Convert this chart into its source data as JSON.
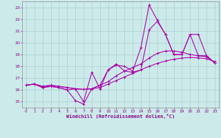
{
  "xlabel": "Windchill (Refroidissement éolien,°C)",
  "x_ticks": [
    0,
    1,
    2,
    3,
    4,
    5,
    6,
    7,
    8,
    9,
    10,
    11,
    12,
    13,
    14,
    15,
    16,
    17,
    18,
    19,
    20,
    21,
    22,
    23
  ],
  "ylim": [
    14.5,
    23.5
  ],
  "xlim": [
    -0.5,
    23.5
  ],
  "yticks": [
    15,
    16,
    17,
    18,
    19,
    20,
    21,
    22,
    23
  ],
  "background_color": "#cdeaea",
  "grid_color": "#aacfcf",
  "line_color": "#aa00aa",
  "smooth_line_x": [
    0,
    1,
    2,
    3,
    4,
    5,
    6,
    7,
    8,
    9,
    10,
    11,
    12,
    13,
    14,
    15,
    16,
    17,
    18,
    19,
    20,
    21,
    22,
    23
  ],
  "smooth_line_y": [
    16.4,
    16.5,
    16.3,
    16.4,
    16.3,
    16.2,
    16.1,
    16.05,
    16.1,
    16.2,
    16.5,
    16.8,
    17.1,
    17.4,
    17.7,
    18.0,
    18.25,
    18.45,
    18.6,
    18.7,
    18.75,
    18.72,
    18.65,
    18.4
  ],
  "smooth_line2_x": [
    0,
    1,
    2,
    3,
    4,
    5,
    6,
    7,
    8,
    9,
    10,
    11,
    12,
    13,
    14,
    15,
    16,
    17,
    18,
    19,
    20,
    21,
    22,
    23
  ],
  "smooth_line2_y": [
    16.4,
    16.5,
    16.3,
    16.4,
    16.3,
    16.2,
    16.1,
    16.05,
    16.1,
    16.4,
    16.7,
    17.2,
    17.6,
    17.9,
    18.2,
    18.7,
    19.1,
    19.3,
    19.3,
    19.2,
    19.0,
    18.9,
    18.8,
    18.3
  ],
  "jagged_line1_x": [
    0,
    1,
    2,
    3,
    4,
    5,
    6,
    7,
    8,
    9,
    10,
    11,
    12,
    13,
    14,
    15,
    16,
    17,
    18,
    19,
    20,
    21,
    22,
    23
  ],
  "jagged_line1_y": [
    16.4,
    16.5,
    16.2,
    16.3,
    16.2,
    16.0,
    15.1,
    14.8,
    16.1,
    16.4,
    17.7,
    18.1,
    18.0,
    17.6,
    19.6,
    23.2,
    21.9,
    20.7,
    19.0,
    19.0,
    20.7,
    18.9,
    18.9,
    18.3
  ],
  "jagged_line2_x": [
    0,
    1,
    2,
    3,
    4,
    5,
    6,
    7,
    8,
    9,
    10,
    11,
    12,
    13,
    14,
    15,
    16,
    17,
    18,
    19,
    20,
    21,
    22,
    23
  ],
  "jagged_line2_y": [
    16.4,
    16.5,
    16.2,
    16.3,
    16.2,
    16.0,
    16.1,
    15.0,
    17.5,
    16.1,
    17.7,
    18.2,
    17.6,
    17.5,
    17.7,
    21.1,
    21.8,
    20.7,
    19.0,
    19.0,
    20.7,
    20.7,
    18.9,
    18.3
  ]
}
